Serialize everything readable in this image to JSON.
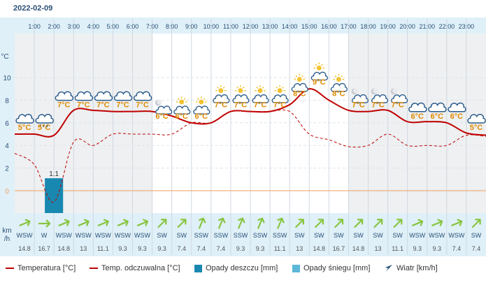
{
  "date": "2022-02-09",
  "colors": {
    "temperature": "#c00000",
    "feels_like": "#c00000",
    "rain": "#1888b0",
    "snow": "#5bb8d8",
    "wind_arrow": "#88c540",
    "zero_line": "#f0a060",
    "temp_label": "#e08a00",
    "axis_panel": "#dff0f8",
    "grid": "#d0d8e0"
  },
  "chart_data": {
    "type": "line",
    "x": [
      "1:00",
      "2:00",
      "3:00",
      "4:00",
      "5:00",
      "6:00",
      "7:00",
      "8:00",
      "9:00",
      "10:00",
      "11:00",
      "12:00",
      "13:00",
      "14:00",
      "15:00",
      "16:00",
      "17:00",
      "18:00",
      "19:00",
      "20:00",
      "21:00",
      "22:00",
      "23:00"
    ],
    "x_edges": [
      "0:00",
      "24:00"
    ],
    "ylim": [
      -2,
      14
    ],
    "y_ticks": [
      0,
      2,
      4,
      6,
      8,
      10
    ],
    "y_unit": "°C",
    "series": [
      {
        "name": "Temperatura [°C]",
        "values": [
          5.0,
          4.9,
          7.1,
          7.1,
          7.0,
          7.0,
          7.0,
          6.6,
          6.0,
          6.0,
          7.0,
          7.0,
          7.0,
          7.6,
          9.0,
          8.0,
          7.1,
          7.0,
          7.1,
          6.1,
          6.1,
          6.0,
          5.1
        ],
        "start": 5.0,
        "end": 4.9
      },
      {
        "name": "Temp. odczuwalna [°C]",
        "values": [
          2.3,
          -1.0,
          4.3,
          4.0,
          5.0,
          5.0,
          5.0,
          5.0,
          6.0,
          6.0,
          7.0,
          7.0,
          7.0,
          7.0,
          5.0,
          4.5,
          3.9,
          4.0,
          5.0,
          4.0,
          4.0,
          4.0,
          4.9
        ],
        "start": 3.3,
        "end": 4.8
      }
    ],
    "temp_labels": [
      "5°C",
      "5°C",
      "7°C",
      "7°C",
      "7°C",
      "7°C",
      "7°C",
      "6°C",
      "6°C",
      "6°C",
      "7°C",
      "7°C",
      "7°C",
      "7°C",
      "8°C",
      "9°C",
      "8°C",
      "7°C",
      "7°C",
      "7°C",
      "6°C",
      "6°C",
      "6°C",
      "5°C"
    ],
    "icons": [
      "overcast-cloud-icon",
      "rain-cloud-icon",
      "overcast-cloud-icon",
      "overcast-cloud-icon",
      "overcast-cloud-icon",
      "overcast-cloud-icon",
      "overcast-cloud-icon",
      "cloud-moon-icon",
      "partly-cloudy-icon",
      "partly-cloudy-icon",
      "partly-cloudy-icon",
      "partly-cloudy-icon",
      "partly-cloudy-icon",
      "partly-cloudy-icon",
      "partly-cloudy-icon",
      "partly-cloudy-icon",
      "partly-cloudy-icon",
      "cloud-moon-icon",
      "cloud-moon-icon",
      "cloud-moon-icon",
      "overcast-cloud-icon",
      "overcast-cloud-icon",
      "overcast-cloud-icon",
      "overcast-cloud-icon"
    ],
    "rain_mm": [
      {
        "hour": "2:00",
        "value": 1.1,
        "label": "1.1"
      }
    ],
    "wind_dir": [
      "WSW",
      "W",
      "WSW",
      "WSW",
      "WSW",
      "WSW",
      "WSW",
      "SW",
      "SW",
      "SSW",
      "SSW",
      "SSW",
      "SSW",
      "SSW",
      "SW",
      "SW",
      "SW",
      "SW",
      "SW",
      "SW",
      "WSW",
      "WSW",
      "WSW",
      "SW"
    ],
    "wind_dir_deg": [
      247.5,
      270,
      247.5,
      247.5,
      247.5,
      247.5,
      247.5,
      225,
      225,
      202.5,
      202.5,
      202.5,
      202.5,
      202.5,
      225,
      225,
      225,
      225,
      225,
      225,
      247.5,
      247.5,
      247.5,
      225
    ],
    "wind_speed": [
      "14.8",
      "16.7",
      "14.8",
      "13",
      "11.1",
      "9.3",
      "9.3",
      "9.3",
      "7.4",
      "7.4",
      "7.4",
      "9.3",
      "9.3",
      "11.1",
      "13",
      "14.8",
      "16.7",
      "14.8",
      "13",
      "11.1",
      "9.3",
      "9.3",
      "7.4",
      "7.4"
    ],
    "wind_unit_top": "km",
    "wind_unit_bottom": "/h",
    "night_shaded": [
      [
        "0:00",
        "7:00"
      ],
      [
        "17:00",
        "24:00"
      ]
    ],
    "legend": [
      {
        "label": "Temperatura [°C]",
        "type": "line-solid"
      },
      {
        "label": "Temp. odczuwalna [°C]",
        "type": "line-solid"
      },
      {
        "label": "Opady deszczu [mm]",
        "type": "box-rain"
      },
      {
        "label": "Opady śniegu [mm]",
        "type": "box-snow"
      },
      {
        "label": "Wiatr [km/h]",
        "type": "arrow"
      }
    ]
  }
}
